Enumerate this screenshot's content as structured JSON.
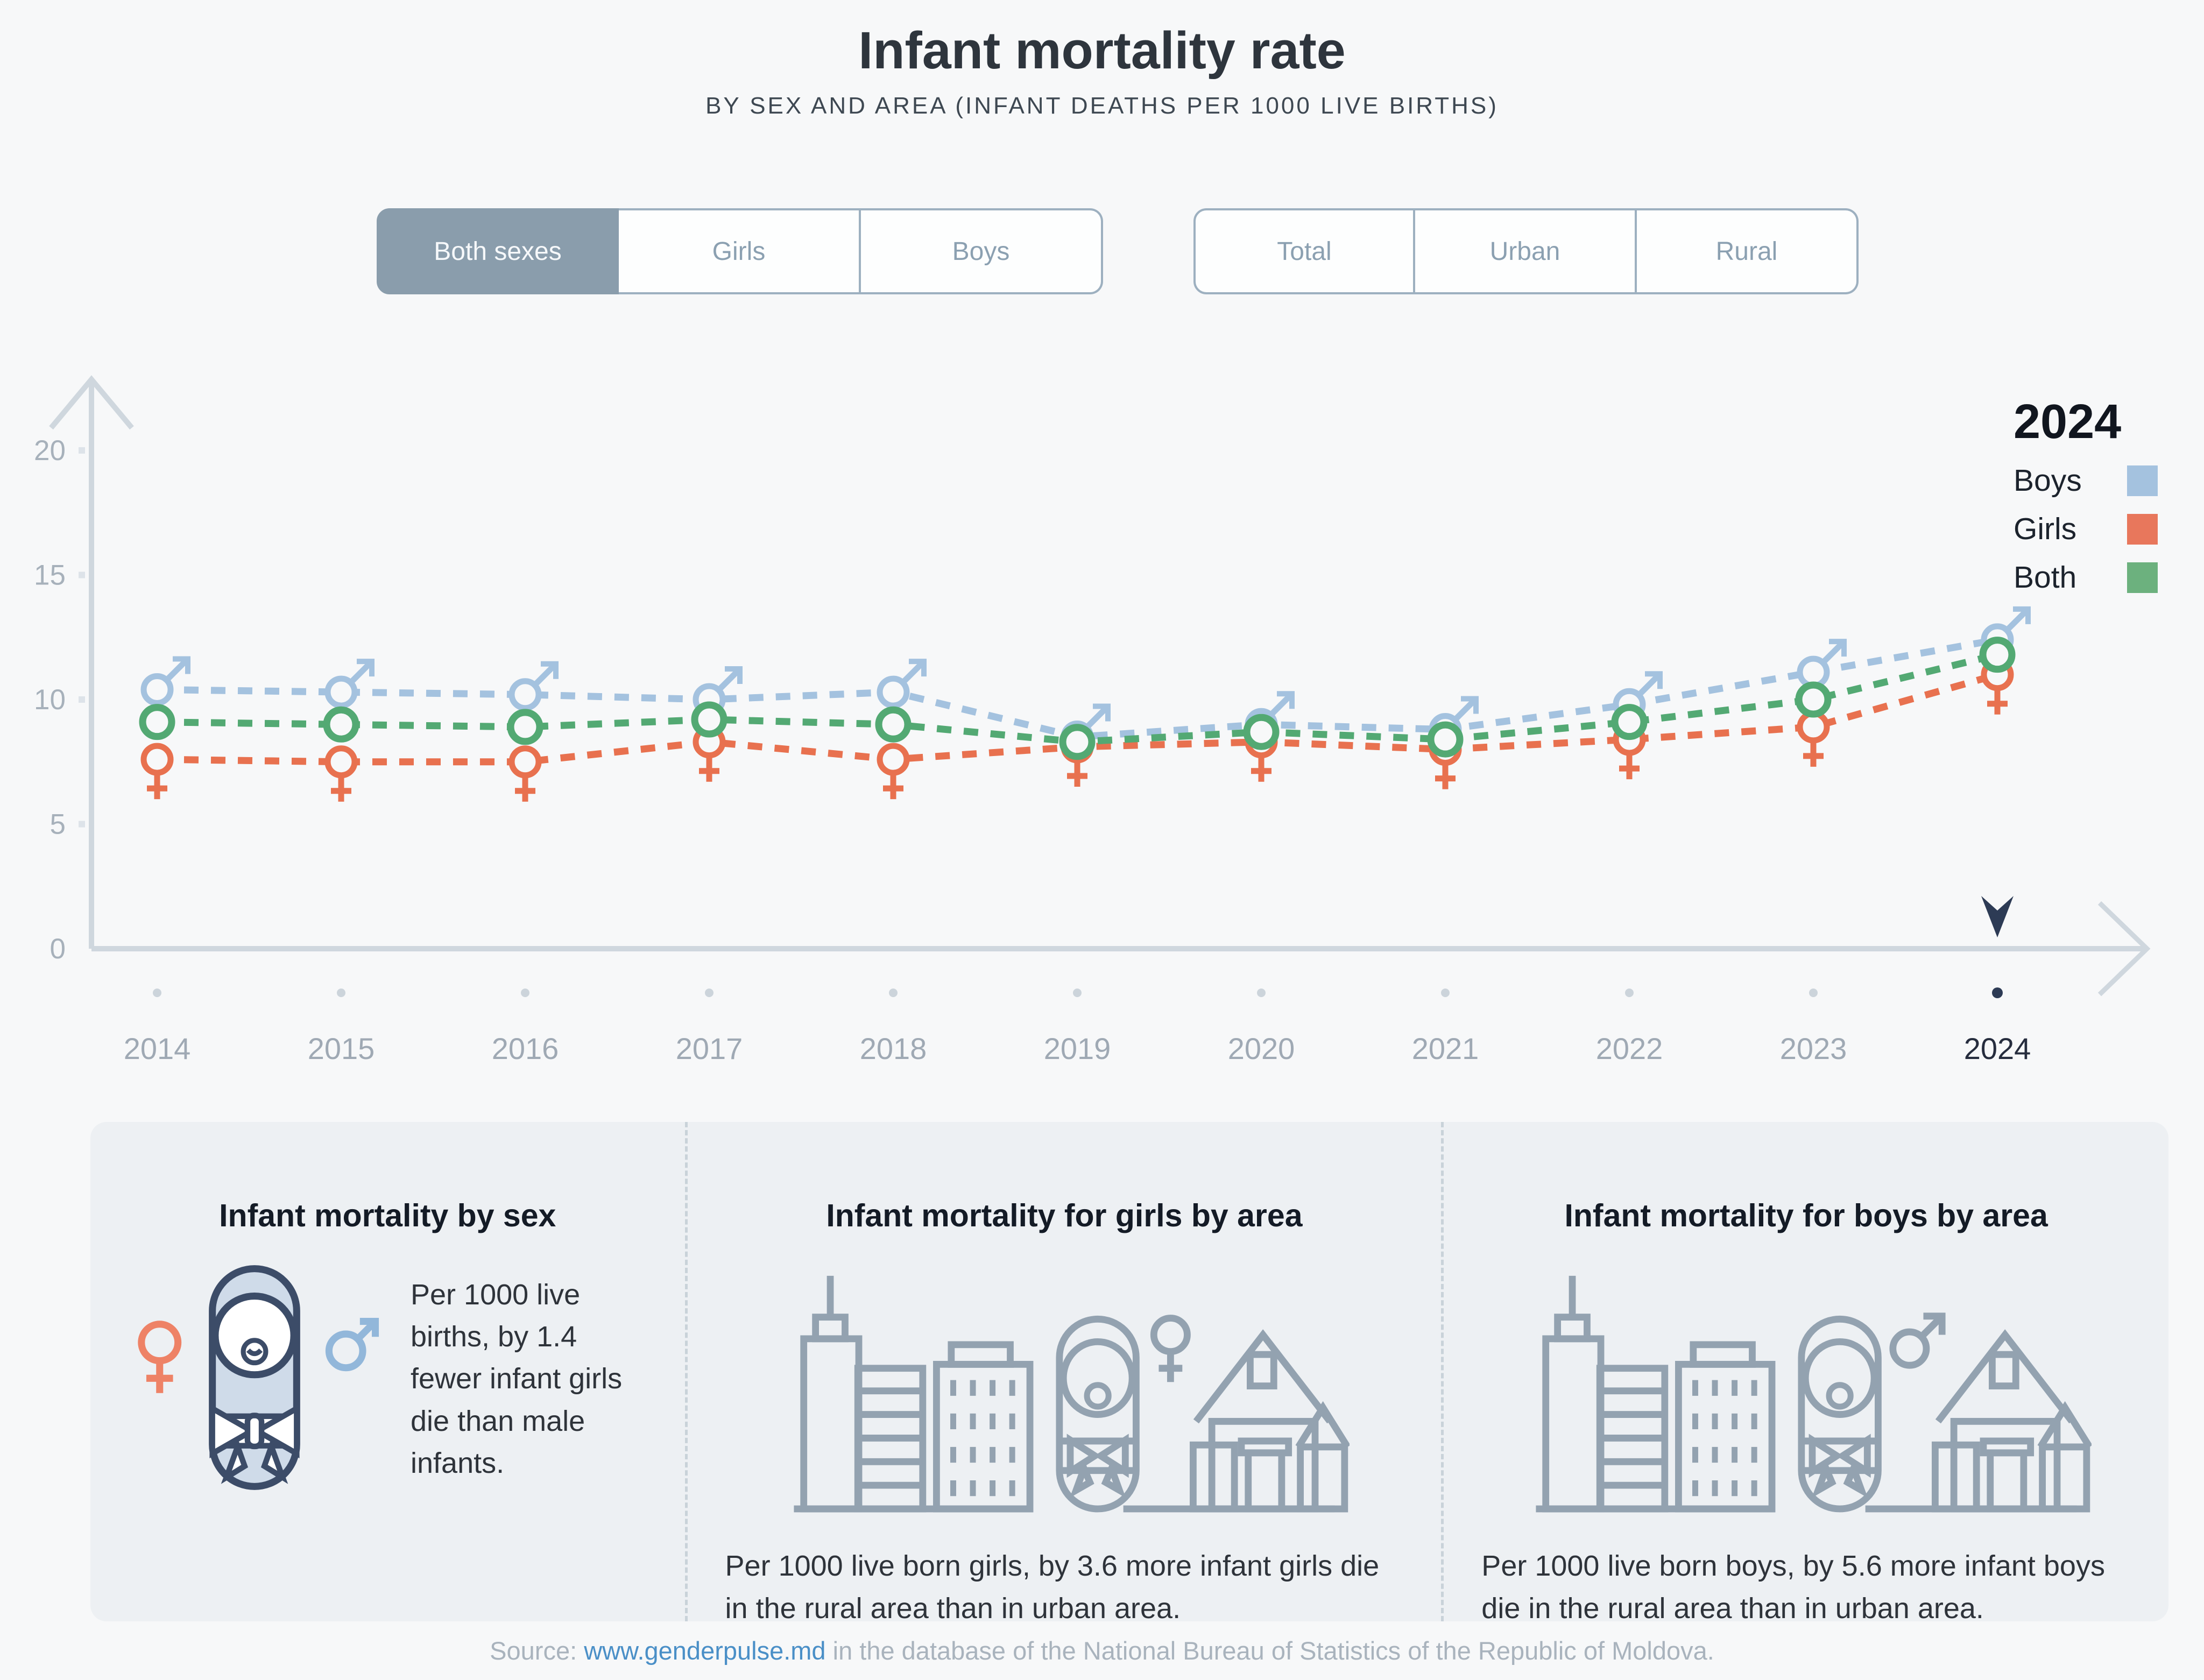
{
  "header": {
    "title": "Infant mortality rate",
    "subtitle": "BY SEX AND AREA (INFANT DEATHS PER 1000 LIVE BIRTHS)"
  },
  "controls": {
    "sex": {
      "options": [
        {
          "label": "Both sexes",
          "selected": true
        },
        {
          "label": "Girls",
          "selected": false
        },
        {
          "label": "Boys",
          "selected": false
        }
      ]
    },
    "area": {
      "options": [
        {
          "label": "Total",
          "selected": false
        },
        {
          "label": "Urban",
          "selected": false
        },
        {
          "label": "Rural",
          "selected": false
        }
      ]
    }
  },
  "chart_data": {
    "type": "line",
    "title": "Infant mortality rate",
    "xlabel": "",
    "ylabel": "Infant deaths per 1000 live births",
    "x": [
      2014,
      2015,
      2016,
      2017,
      2018,
      2019,
      2020,
      2021,
      2022,
      2023,
      2024
    ],
    "series": [
      {
        "name": "Boys",
        "color": "#a4c2df",
        "marker": "male",
        "line_style": "dashed",
        "values": [
          10.4,
          10.3,
          10.2,
          10.0,
          10.3,
          8.5,
          9.0,
          8.8,
          9.8,
          11.1,
          12.4
        ]
      },
      {
        "name": "Girls",
        "color": "#e8714f",
        "marker": "female",
        "line_style": "dashed",
        "values": [
          7.6,
          7.5,
          7.5,
          8.3,
          7.6,
          8.1,
          8.3,
          8.0,
          8.4,
          8.9,
          11.0
        ]
      },
      {
        "name": "Both",
        "color": "#53a973",
        "marker": "circle",
        "line_style": "dashed",
        "values": [
          9.1,
          9.0,
          8.9,
          9.2,
          9.0,
          8.3,
          8.7,
          8.4,
          9.1,
          10.0,
          11.8
        ]
      }
    ],
    "ylim": [
      0,
      22
    ],
    "yticks": [
      0,
      5,
      10,
      15,
      20
    ],
    "grid": false,
    "highlight_year": "2024",
    "legend": {
      "title": "2024",
      "position": "top-right",
      "items": [
        {
          "label": "Boys",
          "color": "#a4c2df"
        },
        {
          "label": "Girls",
          "color": "#e8775c"
        },
        {
          "label": "Both",
          "color": "#6cb17e"
        }
      ]
    }
  },
  "cards": [
    {
      "title": "Infant mortality by sex",
      "text": "Per 1000 live births, by 1.4 fewer infant girls die than male infants."
    },
    {
      "title": "Infant mortality for girls by area",
      "text": "Per 1000 live born girls, by 3.6 more infant girls die in the rural area than in urban area."
    },
    {
      "title": "Infant mortality for boys by area",
      "text": "Per 1000 live born boys, by 5.6 more infant boys die in the rural area than in urban area."
    }
  ],
  "source": {
    "prefix": "Source: ",
    "link_text": "www.genderpulse.md",
    "suffix": " in the database of the National Bureau of Statistics of the Republic of Moldova.",
    "accent_color": "#4a8fc7"
  }
}
